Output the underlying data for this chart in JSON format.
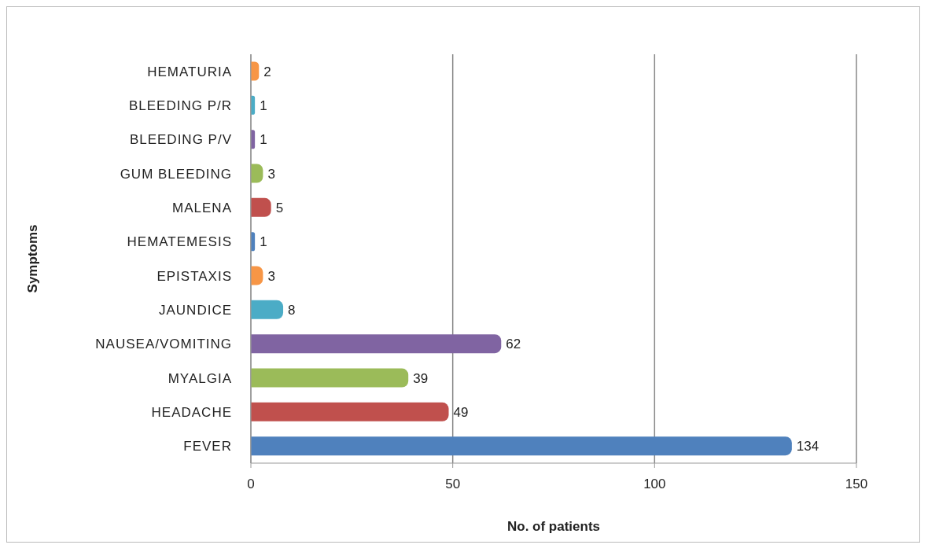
{
  "chart_data": {
    "type": "bar",
    "orientation": "horizontal",
    "xlabel": "No. of patients",
    "ylabel": "Symptoms",
    "categories": [
      "HEMATURIA",
      "BLEEDING P/R",
      "BLEEDING P/V",
      "GUM BLEEDING",
      "MALENA",
      "HEMATEMESIS",
      "EPISTAXIS",
      "JAUNDICE",
      "NAUSEA/VOMITING",
      "MYALGIA",
      "HEADACHE",
      "FEVER"
    ],
    "values": [
      2,
      1,
      1,
      3,
      5,
      1,
      3,
      8,
      62,
      39,
      49,
      134
    ],
    "colors": [
      "#f79646",
      "#4bacc6",
      "#8064a2",
      "#9bbb59",
      "#c0504d",
      "#4f81bd",
      "#f79646",
      "#4bacc6",
      "#8064a2",
      "#9bbb59",
      "#c0504d",
      "#4f81bd"
    ],
    "xlim": [
      0,
      150
    ],
    "xticks": [
      0,
      50,
      100,
      150
    ],
    "grid": "x",
    "data_labels": true
  }
}
